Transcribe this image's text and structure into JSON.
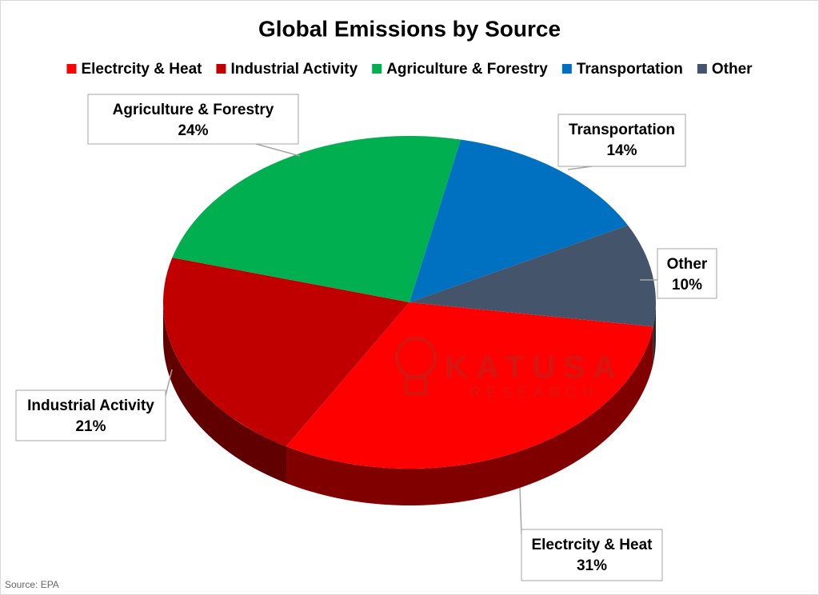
{
  "chart_data": {
    "type": "pie",
    "title": "Global Emissions by Source",
    "categories": [
      "Electrcity & Heat",
      "Industrial Activity",
      "Agriculture & Forestry",
      "Transportation",
      "Other"
    ],
    "values": [
      31,
      21,
      24,
      14,
      10
    ],
    "value_labels": [
      "31%",
      "21%",
      "24%",
      "14%",
      "10%"
    ],
    "colors": [
      "#ff0000",
      "#c00000",
      "#00b050",
      "#0070c0",
      "#44546a"
    ],
    "legend": "top",
    "watermark": {
      "name": "KATUSA",
      "sub": "RESEARCH"
    },
    "source": "Source: EPA"
  }
}
